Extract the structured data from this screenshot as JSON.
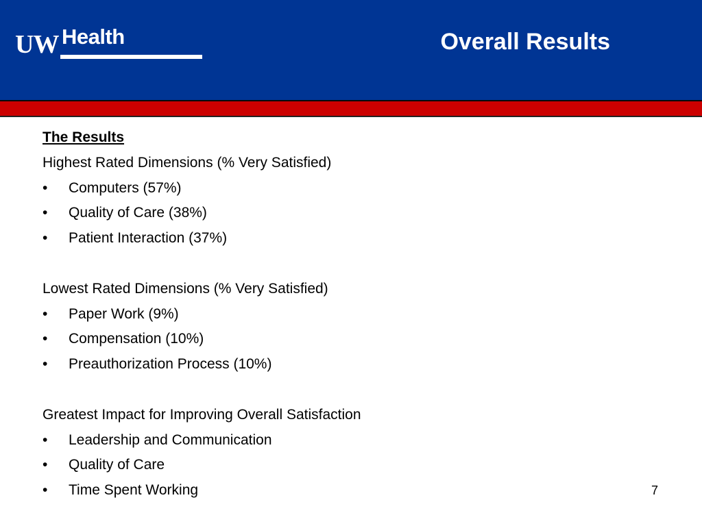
{
  "header": {
    "logo_text_uw": "UW",
    "logo_text_health": "Health",
    "title": "Overall Results",
    "colors": {
      "header_blue": "#003594",
      "band_red": "#cc0000"
    }
  },
  "content": {
    "heading": "The Results",
    "sections": [
      {
        "title": "Highest Rated Dimensions (% Very Satisfied)",
        "bullets": [
          "Computers (57%)",
          "Quality of Care (38%)",
          "Patient Interaction (37%)"
        ]
      },
      {
        "title": "Lowest Rated Dimensions (% Very Satisfied)",
        "bullets": [
          "Paper Work (9%)",
          "Compensation (10%)",
          "Preauthorization Process (10%)"
        ]
      },
      {
        "title": "Greatest Impact for Improving Overall Satisfaction",
        "bullets": [
          "Leadership and Communication",
          "Quality of Care",
          "Time Spent Working"
        ]
      }
    ],
    "bullet_char": "•"
  },
  "footer": {
    "page_number": "7"
  }
}
